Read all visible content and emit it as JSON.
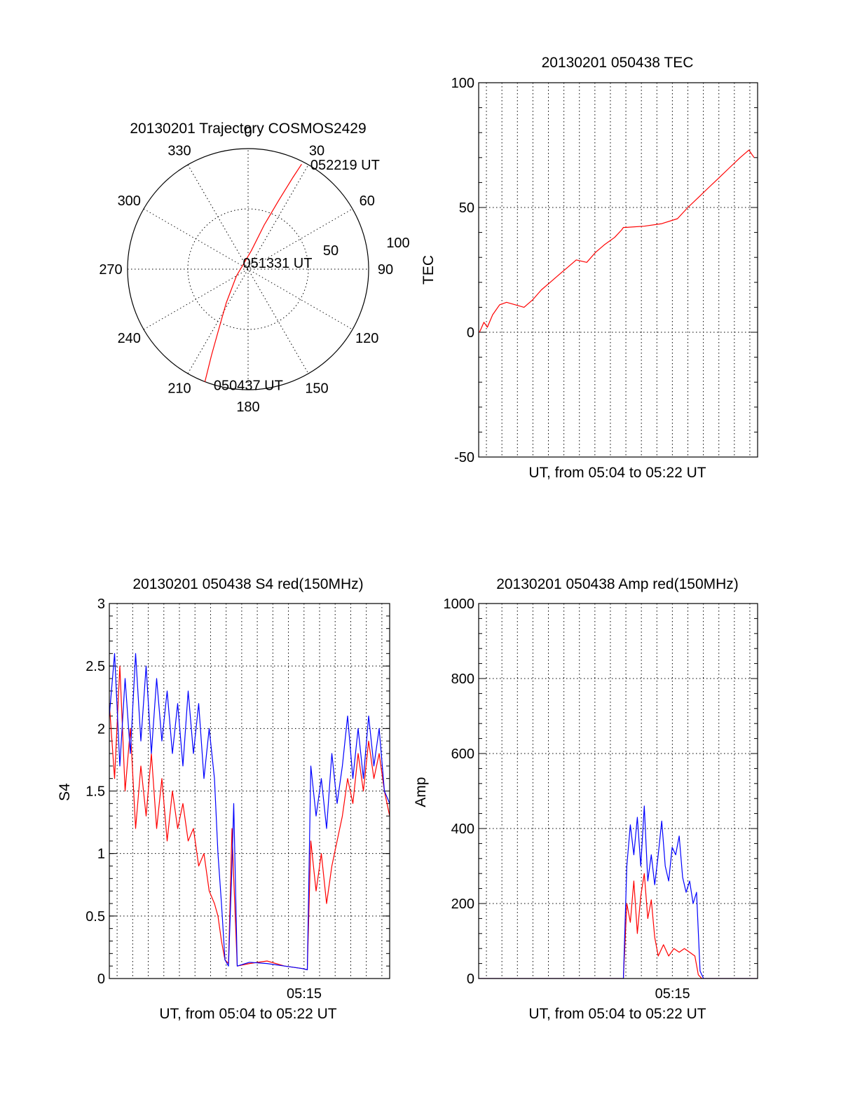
{
  "chart_data": [
    {
      "id": "trajectory",
      "type": "polar",
      "title": "20130201 Trajectory COSMOS2429",
      "azimuth_labels": [
        "0",
        "30",
        "60",
        "90",
        "120",
        "150",
        "180",
        "210",
        "240",
        "270",
        "300",
        "330"
      ],
      "elevation_labels": [
        "50",
        "100"
      ],
      "series": [
        {
          "color": "#ff0000",
          "points": [
            {
              "az": 201,
              "zen": 90
            },
            {
              "az": 203,
              "zen": 70
            },
            {
              "az": 206,
              "zen": 50
            },
            {
              "az": 213,
              "zen": 30
            },
            {
              "az": 240,
              "zen": 10
            },
            {
              "az": 10,
              "zen": 14
            },
            {
              "az": 20,
              "zen": 35
            },
            {
              "az": 24,
              "zen": 56
            },
            {
              "az": 26,
              "zen": 76
            },
            {
              "az": 27,
              "zen": 88
            }
          ]
        }
      ],
      "annotations": [
        {
          "text": "052219 UT",
          "az": 27,
          "zen": 88
        },
        {
          "text": "051331 UT",
          "az": 0,
          "zen": 0
        },
        {
          "text": "050437 UT",
          "az": 201,
          "zen": 90
        }
      ]
    },
    {
      "id": "tec",
      "type": "line",
      "title": "20130201 050438 TEC",
      "xlabel": "UT, from 05:04 to 05:22 UT",
      "ylabel": "TEC",
      "ylim": [
        -50,
        100
      ],
      "yticks": [
        "-50",
        "0",
        "50",
        "100"
      ],
      "grid": true,
      "series": [
        {
          "color": "#ff0000",
          "points": [
            [
              0.05,
              0
            ],
            [
              0.3,
              4
            ],
            [
              0.5,
              2
            ],
            [
              0.8,
              7
            ],
            [
              1.2,
              11
            ],
            [
              1.6,
              12
            ],
            [
              2.1,
              11
            ],
            [
              2.6,
              10
            ],
            [
              3.1,
              13
            ],
            [
              3.6,
              17
            ],
            [
              4.1,
              20
            ],
            [
              4.6,
              23
            ],
            [
              5.1,
              26
            ],
            [
              5.6,
              29
            ],
            [
              6.2,
              28
            ],
            [
              6.7,
              32
            ],
            [
              7.2,
              35
            ],
            [
              7.8,
              38
            ],
            [
              8.2,
              41
            ],
            [
              8.3,
              42
            ],
            [
              8.4,
              42
            ],
            [
              9.5,
              42.5
            ],
            [
              10.5,
              43.5
            ],
            [
              11.4,
              45.5
            ],
            [
              12.0,
              50
            ],
            [
              12.6,
              54
            ],
            [
              13.2,
              58
            ],
            [
              13.8,
              62
            ],
            [
              14.4,
              66
            ],
            [
              15.0,
              70
            ],
            [
              15.5,
              73
            ],
            [
              15.8,
              70
            ]
          ]
        }
      ]
    },
    {
      "id": "s4",
      "type": "line",
      "title": "20130201 050438 S4 red(150MHz)",
      "xlabel": "UT, from 05:04 to 05:22 UT",
      "ylabel": "S4",
      "ylim": [
        0,
        3
      ],
      "yticks": [
        "0",
        "0.5",
        "1",
        "1.5",
        "2",
        "2.5",
        "3"
      ],
      "xticks": [
        "05:15"
      ],
      "grid": true,
      "series": [
        {
          "color": "#ff0000",
          "points": [
            [
              0.0,
              2.2
            ],
            [
              0.3,
              1.6
            ],
            [
              0.6,
              2.5
            ],
            [
              0.9,
              1.5
            ],
            [
              1.2,
              2.0
            ],
            [
              1.5,
              1.2
            ],
            [
              1.8,
              1.7
            ],
            [
              2.1,
              1.3
            ],
            [
              2.4,
              1.8
            ],
            [
              2.7,
              1.2
            ],
            [
              3.0,
              1.6
            ],
            [
              3.3,
              1.1
            ],
            [
              3.6,
              1.5
            ],
            [
              3.9,
              1.2
            ],
            [
              4.2,
              1.4
            ],
            [
              4.5,
              1.1
            ],
            [
              4.8,
              1.2
            ],
            [
              5.1,
              0.9
            ],
            [
              5.4,
              1.0
            ],
            [
              5.7,
              0.7
            ],
            [
              6.0,
              0.6
            ],
            [
              6.2,
              0.5
            ],
            [
              6.4,
              0.3
            ],
            [
              6.6,
              0.15
            ],
            [
              6.8,
              0.12
            ],
            [
              7.0,
              1.2
            ],
            [
              7.1,
              0.8
            ],
            [
              7.3,
              0.1
            ],
            [
              8.0,
              0.12
            ],
            [
              9.0,
              0.14
            ],
            [
              10.0,
              0.1
            ],
            [
              11.0,
              0.08
            ],
            [
              11.3,
              0.07
            ],
            [
              11.5,
              1.1
            ],
            [
              11.8,
              0.7
            ],
            [
              12.1,
              1.0
            ],
            [
              12.4,
              0.6
            ],
            [
              12.7,
              0.9
            ],
            [
              13.0,
              1.1
            ],
            [
              13.3,
              1.3
            ],
            [
              13.6,
              1.6
            ],
            [
              13.9,
              1.4
            ],
            [
              14.2,
              1.8
            ],
            [
              14.5,
              1.5
            ],
            [
              14.8,
              1.9
            ],
            [
              15.1,
              1.6
            ],
            [
              15.4,
              1.8
            ],
            [
              15.7,
              1.5
            ],
            [
              16.0,
              1.3
            ]
          ]
        },
        {
          "color": "#0000ff",
          "points": [
            [
              0.0,
              2.1
            ],
            [
              0.3,
              2.6
            ],
            [
              0.6,
              1.7
            ],
            [
              0.9,
              2.4
            ],
            [
              1.2,
              1.8
            ],
            [
              1.5,
              2.6
            ],
            [
              1.8,
              1.9
            ],
            [
              2.1,
              2.5
            ],
            [
              2.4,
              1.8
            ],
            [
              2.7,
              2.4
            ],
            [
              3.0,
              1.9
            ],
            [
              3.3,
              2.3
            ],
            [
              3.6,
              1.8
            ],
            [
              3.9,
              2.2
            ],
            [
              4.2,
              1.7
            ],
            [
              4.5,
              2.3
            ],
            [
              4.8,
              1.8
            ],
            [
              5.1,
              2.2
            ],
            [
              5.4,
              1.6
            ],
            [
              5.7,
              2.0
            ],
            [
              6.0,
              1.6
            ],
            [
              6.2,
              1.0
            ],
            [
              6.4,
              0.6
            ],
            [
              6.6,
              0.15
            ],
            [
              6.8,
              0.1
            ],
            [
              7.0,
              0.9
            ],
            [
              7.1,
              1.4
            ],
            [
              7.3,
              0.1
            ],
            [
              8.0,
              0.13
            ],
            [
              9.0,
              0.12
            ],
            [
              10.0,
              0.1
            ],
            [
              11.0,
              0.08
            ],
            [
              11.3,
              0.07
            ],
            [
              11.5,
              1.7
            ],
            [
              11.8,
              1.3
            ],
            [
              12.1,
              1.6
            ],
            [
              12.4,
              1.2
            ],
            [
              12.7,
              1.8
            ],
            [
              13.0,
              1.4
            ],
            [
              13.3,
              1.7
            ],
            [
              13.6,
              2.1
            ],
            [
              13.9,
              1.6
            ],
            [
              14.2,
              2.0
            ],
            [
              14.5,
              1.6
            ],
            [
              14.8,
              2.1
            ],
            [
              15.1,
              1.7
            ],
            [
              15.4,
              2.0
            ],
            [
              15.7,
              1.5
            ],
            [
              16.0,
              1.4
            ]
          ]
        }
      ]
    },
    {
      "id": "amp",
      "type": "line",
      "title": "20130201 050438 Amp red(150MHz)",
      "xlabel": "UT, from 05:04 to 05:22 UT",
      "ylabel": "Amp",
      "ylim": [
        0,
        1000
      ],
      "yticks": [
        "0",
        "200",
        "400",
        "600",
        "800",
        "1000"
      ],
      "xticks": [
        "05:15"
      ],
      "grid": true,
      "series": [
        {
          "color": "#ff0000",
          "points": [
            [
              0.0,
              0
            ],
            [
              8.3,
              0
            ],
            [
              8.5,
              200
            ],
            [
              8.7,
              150
            ],
            [
              8.9,
              260
            ],
            [
              9.1,
              120
            ],
            [
              9.3,
              220
            ],
            [
              9.5,
              280
            ],
            [
              9.7,
              160
            ],
            [
              9.9,
              210
            ],
            [
              10.1,
              110
            ],
            [
              10.3,
              60
            ],
            [
              10.6,
              90
            ],
            [
              10.9,
              60
            ],
            [
              11.2,
              80
            ],
            [
              11.5,
              70
            ],
            [
              11.8,
              80
            ],
            [
              12.1,
              70
            ],
            [
              12.4,
              60
            ],
            [
              12.6,
              10
            ],
            [
              12.8,
              0
            ],
            [
              16.0,
              0
            ]
          ]
        },
        {
          "color": "#0000ff",
          "points": [
            [
              0.0,
              0
            ],
            [
              8.3,
              0
            ],
            [
              8.5,
              300
            ],
            [
              8.7,
              410
            ],
            [
              8.9,
              330
            ],
            [
              9.1,
              430
            ],
            [
              9.3,
              300
            ],
            [
              9.5,
              460
            ],
            [
              9.7,
              260
            ],
            [
              9.9,
              330
            ],
            [
              10.1,
              250
            ],
            [
              10.3,
              330
            ],
            [
              10.5,
              420
            ],
            [
              10.7,
              300
            ],
            [
              10.9,
              260
            ],
            [
              11.1,
              350
            ],
            [
              11.3,
              330
            ],
            [
              11.5,
              380
            ],
            [
              11.7,
              270
            ],
            [
              11.9,
              230
            ],
            [
              12.1,
              260
            ],
            [
              12.3,
              200
            ],
            [
              12.5,
              230
            ],
            [
              12.7,
              20
            ],
            [
              12.9,
              0
            ],
            [
              16.0,
              0
            ]
          ]
        }
      ]
    }
  ]
}
